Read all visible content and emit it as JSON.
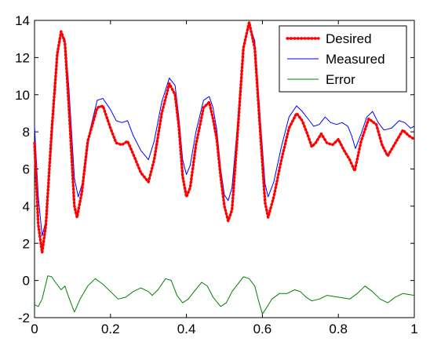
{
  "chart_data": {
    "type": "line",
    "xlim": [
      0,
      1
    ],
    "ylim": [
      -2,
      14
    ],
    "x_ticks": [
      0,
      0.2,
      0.4,
      0.6,
      0.8,
      1
    ],
    "y_ticks": [
      -2,
      0,
      2,
      4,
      6,
      8,
      10,
      12,
      14
    ],
    "x_tick_labels": [
      "0",
      "0.2",
      "0.4",
      "0.6",
      "0.8",
      "1"
    ],
    "y_tick_labels": [
      "-2",
      "0",
      "2",
      "4",
      "6",
      "8",
      "10",
      "12",
      "14"
    ],
    "grid": false,
    "legend_position": "top-right",
    "series": [
      {
        "name": "Desired",
        "color": "#ff0000",
        "style": "dotted",
        "points": [
          [
            0,
            7.4
          ],
          [
            0.01,
            3.0
          ],
          [
            0.02,
            1.5
          ],
          [
            0.03,
            3.0
          ],
          [
            0.045,
            8.0
          ],
          [
            0.06,
            12.2
          ],
          [
            0.07,
            13.4
          ],
          [
            0.08,
            12.8
          ],
          [
            0.09,
            9.5
          ],
          [
            0.105,
            4.0
          ],
          [
            0.112,
            3.4
          ],
          [
            0.125,
            4.8
          ],
          [
            0.14,
            7.5
          ],
          [
            0.165,
            9.3
          ],
          [
            0.18,
            9.4
          ],
          [
            0.2,
            8.2
          ],
          [
            0.215,
            7.4
          ],
          [
            0.23,
            7.3
          ],
          [
            0.245,
            7.5
          ],
          [
            0.26,
            6.8
          ],
          [
            0.28,
            5.8
          ],
          [
            0.3,
            5.3
          ],
          [
            0.315,
            6.5
          ],
          [
            0.335,
            9.0
          ],
          [
            0.355,
            10.6
          ],
          [
            0.37,
            10.0
          ],
          [
            0.38,
            8.3
          ],
          [
            0.39,
            5.6
          ],
          [
            0.4,
            4.5
          ],
          [
            0.41,
            5.0
          ],
          [
            0.425,
            7.3
          ],
          [
            0.445,
            9.3
          ],
          [
            0.46,
            9.6
          ],
          [
            0.47,
            8.7
          ],
          [
            0.48,
            7.6
          ],
          [
            0.49,
            5.6
          ],
          [
            0.5,
            4.0
          ],
          [
            0.51,
            3.2
          ],
          [
            0.52,
            3.8
          ],
          [
            0.535,
            8.0
          ],
          [
            0.55,
            12.5
          ],
          [
            0.565,
            13.9
          ],
          [
            0.58,
            12.5
          ],
          [
            0.595,
            7.8
          ],
          [
            0.607,
            4.2
          ],
          [
            0.615,
            3.4
          ],
          [
            0.63,
            4.5
          ],
          [
            0.65,
            6.5
          ],
          [
            0.67,
            8.2
          ],
          [
            0.69,
            9.0
          ],
          [
            0.705,
            8.6
          ],
          [
            0.72,
            7.8
          ],
          [
            0.73,
            7.2
          ],
          [
            0.74,
            7.4
          ],
          [
            0.755,
            7.9
          ],
          [
            0.77,
            7.4
          ],
          [
            0.785,
            7.3
          ],
          [
            0.8,
            7.6
          ],
          [
            0.815,
            7.0
          ],
          [
            0.83,
            6.5
          ],
          [
            0.843,
            5.9
          ],
          [
            0.86,
            7.5
          ],
          [
            0.88,
            8.7
          ],
          [
            0.9,
            8.4
          ],
          [
            0.915,
            7.3
          ],
          [
            0.93,
            6.7
          ],
          [
            0.95,
            7.4
          ],
          [
            0.97,
            8.1
          ],
          [
            0.985,
            7.8
          ],
          [
            1.0,
            7.6
          ]
        ]
      },
      {
        "name": "Measured",
        "color": "#0000ff",
        "style": "solid",
        "points": [
          [
            0,
            8.3
          ],
          [
            0.01,
            4.5
          ],
          [
            0.02,
            2.4
          ],
          [
            0.03,
            3.2
          ],
          [
            0.045,
            7.5
          ],
          [
            0.06,
            12.0
          ],
          [
            0.07,
            13.3
          ],
          [
            0.08,
            13.0
          ],
          [
            0.09,
            10.5
          ],
          [
            0.105,
            5.5
          ],
          [
            0.115,
            4.5
          ],
          [
            0.13,
            5.5
          ],
          [
            0.145,
            8.0
          ],
          [
            0.165,
            9.7
          ],
          [
            0.18,
            9.8
          ],
          [
            0.2,
            9.2
          ],
          [
            0.215,
            8.6
          ],
          [
            0.23,
            8.5
          ],
          [
            0.245,
            8.6
          ],
          [
            0.26,
            7.8
          ],
          [
            0.28,
            7.0
          ],
          [
            0.3,
            6.5
          ],
          [
            0.315,
            7.5
          ],
          [
            0.335,
            9.6
          ],
          [
            0.355,
            10.9
          ],
          [
            0.37,
            10.5
          ],
          [
            0.38,
            8.8
          ],
          [
            0.39,
            6.5
          ],
          [
            0.4,
            5.7
          ],
          [
            0.41,
            6.2
          ],
          [
            0.425,
            8.0
          ],
          [
            0.445,
            9.7
          ],
          [
            0.46,
            9.9
          ],
          [
            0.47,
            9.3
          ],
          [
            0.48,
            8.1
          ],
          [
            0.49,
            6.0
          ],
          [
            0.5,
            4.6
          ],
          [
            0.51,
            4.3
          ],
          [
            0.52,
            5.0
          ],
          [
            0.535,
            8.5
          ],
          [
            0.55,
            12.6
          ],
          [
            0.565,
            13.8
          ],
          [
            0.58,
            12.9
          ],
          [
            0.595,
            8.5
          ],
          [
            0.607,
            5.2
          ],
          [
            0.615,
            4.5
          ],
          [
            0.63,
            5.3
          ],
          [
            0.65,
            7.2
          ],
          [
            0.67,
            8.8
          ],
          [
            0.69,
            9.4
          ],
          [
            0.705,
            9.1
          ],
          [
            0.72,
            8.7
          ],
          [
            0.735,
            8.3
          ],
          [
            0.75,
            8.4
          ],
          [
            0.765,
            8.8
          ],
          [
            0.78,
            8.5
          ],
          [
            0.795,
            8.4
          ],
          [
            0.81,
            8.5
          ],
          [
            0.825,
            8.3
          ],
          [
            0.835,
            7.8
          ],
          [
            0.845,
            7.1
          ],
          [
            0.86,
            7.9
          ],
          [
            0.875,
            8.8
          ],
          [
            0.89,
            9.1
          ],
          [
            0.905,
            8.5
          ],
          [
            0.92,
            8.1
          ],
          [
            0.94,
            8.2
          ],
          [
            0.96,
            8.6
          ],
          [
            0.975,
            8.5
          ],
          [
            0.99,
            8.2
          ],
          [
            1.0,
            8.3
          ]
        ]
      },
      {
        "name": "Error",
        "color": "#008000",
        "style": "solid",
        "points": [
          [
            0,
            -1.3
          ],
          [
            0.01,
            -1.4
          ],
          [
            0.02,
            -1.0
          ],
          [
            0.035,
            0.25
          ],
          [
            0.045,
            0.2
          ],
          [
            0.055,
            -0.1
          ],
          [
            0.07,
            -0.5
          ],
          [
            0.08,
            -0.3
          ],
          [
            0.09,
            -0.9
          ],
          [
            0.105,
            -1.7
          ],
          [
            0.12,
            -1.0
          ],
          [
            0.14,
            -0.3
          ],
          [
            0.16,
            0.1
          ],
          [
            0.18,
            -0.2
          ],
          [
            0.2,
            -0.6
          ],
          [
            0.22,
            -1.0
          ],
          [
            0.24,
            -0.9
          ],
          [
            0.26,
            -0.6
          ],
          [
            0.28,
            -0.4
          ],
          [
            0.3,
            -0.6
          ],
          [
            0.31,
            -0.8
          ],
          [
            0.325,
            -0.5
          ],
          [
            0.345,
            0.1
          ],
          [
            0.36,
            0.0
          ],
          [
            0.375,
            -0.8
          ],
          [
            0.39,
            -1.2
          ],
          [
            0.405,
            -1.0
          ],
          [
            0.42,
            -0.6
          ],
          [
            0.44,
            -0.1
          ],
          [
            0.455,
            -0.3
          ],
          [
            0.47,
            -0.9
          ],
          [
            0.49,
            -1.4
          ],
          [
            0.505,
            -1.2
          ],
          [
            0.52,
            -0.6
          ],
          [
            0.535,
            -0.2
          ],
          [
            0.55,
            0.2
          ],
          [
            0.565,
            0.1
          ],
          [
            0.58,
            -0.3
          ],
          [
            0.59,
            -1.1
          ],
          [
            0.6,
            -1.8
          ],
          [
            0.61,
            -1.5
          ],
          [
            0.625,
            -1.0
          ],
          [
            0.645,
            -0.7
          ],
          [
            0.665,
            -0.7
          ],
          [
            0.685,
            -0.5
          ],
          [
            0.7,
            -0.6
          ],
          [
            0.715,
            -0.9
          ],
          [
            0.73,
            -1.1
          ],
          [
            0.75,
            -1.0
          ],
          [
            0.77,
            -0.8
          ],
          [
            0.8,
            -0.9
          ],
          [
            0.83,
            -1.0
          ],
          [
            0.85,
            -0.7
          ],
          [
            0.87,
            -0.3
          ],
          [
            0.89,
            -0.6
          ],
          [
            0.91,
            -1.0
          ],
          [
            0.93,
            -1.2
          ],
          [
            0.95,
            -0.9
          ],
          [
            0.97,
            -0.7
          ],
          [
            1.0,
            -0.8
          ]
        ]
      }
    ]
  }
}
